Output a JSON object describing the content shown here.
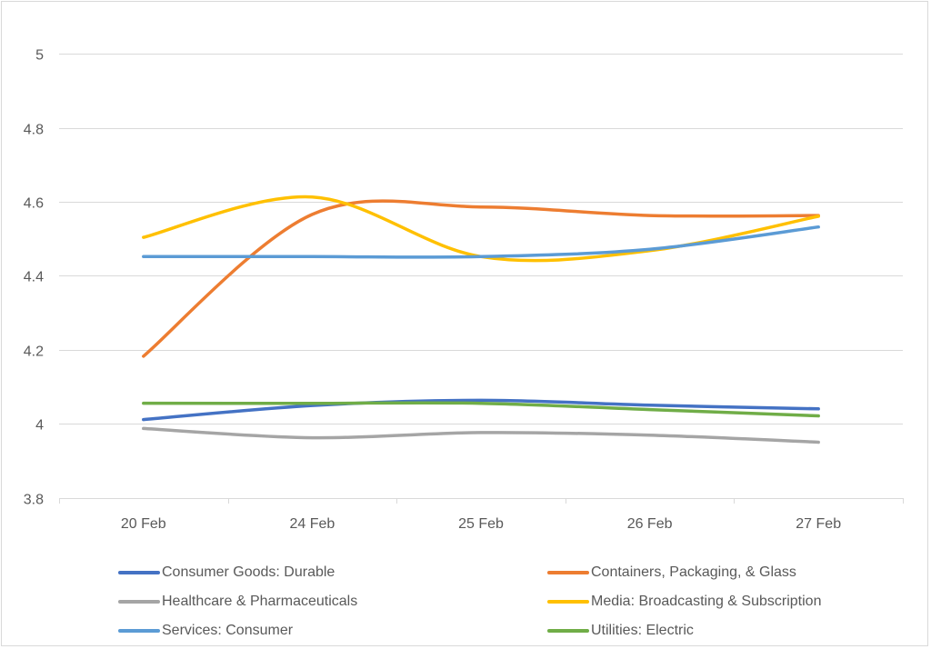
{
  "chart_data": {
    "type": "line",
    "title": "",
    "xlabel": "",
    "ylabel": "",
    "categories": [
      "20 Feb",
      "24 Feb",
      "25 Feb",
      "26 Feb",
      "27 Feb"
    ],
    "ylim": [
      3.8,
      5
    ],
    "yticks": [
      "5",
      "4.8",
      "4.6",
      "4.4",
      "4.2",
      "4",
      "3.8"
    ],
    "ytick_values": [
      5,
      4.8,
      4.6,
      4.4,
      4.2,
      4,
      3.8
    ],
    "grid": true,
    "smooth": true,
    "legend_position": "bottom",
    "series": [
      {
        "name": "Consumer Goods: Durable",
        "color": "#4472c4",
        "values": [
          4.012,
          4.05,
          4.064,
          4.051,
          4.041
        ]
      },
      {
        "name": "Containers, Packaging, & Glass",
        "color": "#ed7d31",
        "values": [
          4.183,
          4.566,
          4.586,
          4.563,
          4.563
        ]
      },
      {
        "name": "Healthcare & Pharmaceuticals",
        "color": "#a5a5a5",
        "values": [
          3.988,
          3.963,
          3.977,
          3.97,
          3.951
        ]
      },
      {
        "name": "Media: Broadcasting & Subscription",
        "color": "#ffc000",
        "values": [
          4.504,
          4.613,
          4.452,
          4.468,
          4.561
        ]
      },
      {
        "name": "Services: Consumer",
        "color": "#5b9bd5",
        "values": [
          4.452,
          4.452,
          4.452,
          4.472,
          4.532
        ]
      },
      {
        "name": "Utilities: Electric",
        "color": "#70ad47",
        "values": [
          4.056,
          4.056,
          4.056,
          4.039,
          4.022
        ]
      }
    ]
  }
}
